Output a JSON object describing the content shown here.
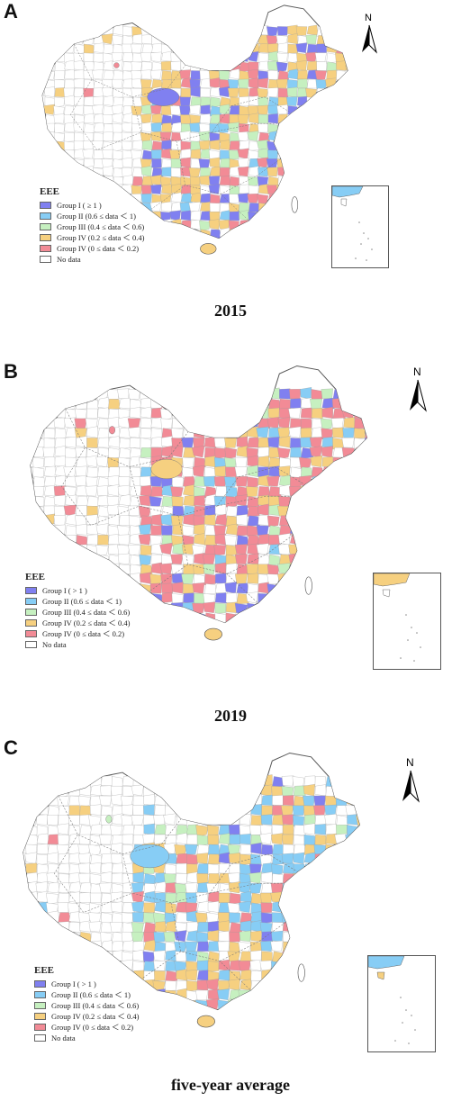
{
  "colors": {
    "group1": "#8080f0",
    "group2": "#87cdf5",
    "group3": "#c6f0c0",
    "group4a": "#f6d080",
    "group4b": "#f28b96",
    "nodata": "#ffffff",
    "border": "#888888"
  },
  "north_arrow": {
    "label": "N"
  },
  "panels": [
    {
      "letter": "A",
      "year_label": "2015",
      "legend": {
        "title": "EEE",
        "items": [
          "Group I ( ≥ 1 )",
          "Group II (0.6 ≤ data ＜ 1)",
          "Group III (0.4 ≤ data ＜ 0.6)",
          "Group IV (0.2 ≤ data ＜ 0.4)",
          "Group IV (0 ≤ data ＜ 0.2)",
          "No data"
        ]
      }
    },
    {
      "letter": "B",
      "year_label": "2019",
      "legend": {
        "title": "EEE",
        "items": [
          "Group I ( > 1 )",
          "Group II (0.6 ≤ data ＜ 1)",
          "Group III (0.4 ≤ data ＜ 0.6)",
          "Group IV (0.2 ≤ data ＜ 0.4)",
          "Group IV (0 ≤ data ＜ 0.2)",
          "No data"
        ]
      }
    },
    {
      "letter": "C",
      "year_label": "five-year average",
      "legend": {
        "title": "EEE",
        "items": [
          "Group I ( > 1 )",
          "Group II (0.6 ≤ data ＜ 1)",
          "Group III (0.4 ≤ data ＜ 0.6)",
          "Group IV (0.2 ≤ data ＜ 0.4)",
          "Group IV (0 ≤ data ＜ 0.2)",
          "No data"
        ]
      }
    }
  ]
}
